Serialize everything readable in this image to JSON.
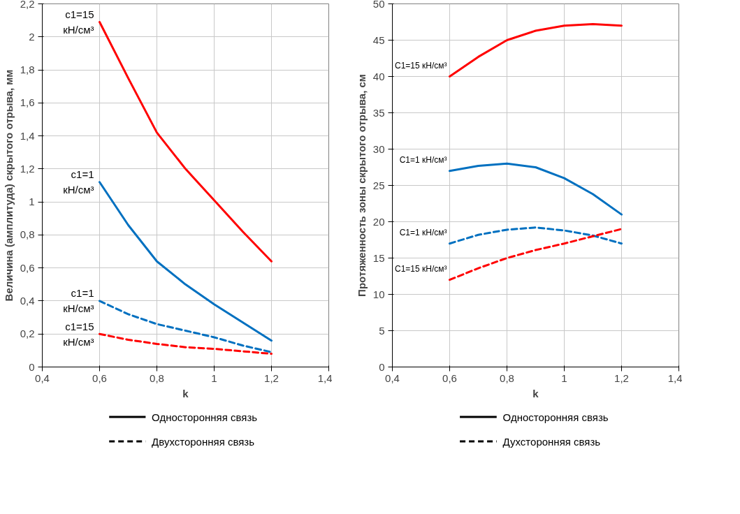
{
  "chart_data": [
    {
      "type": "line",
      "xlabel": "k",
      "ylabel": "Величина (амплитуда) скрытого отрыва, мм",
      "xlim": [
        0.4,
        1.4
      ],
      "xticks": [
        {
          "value": 0.4,
          "label": "0,4"
        },
        {
          "value": 0.6,
          "label": "0,6"
        },
        {
          "value": 0.8,
          "label": "0,8"
        },
        {
          "value": 1,
          "label": "1"
        },
        {
          "value": 1.2,
          "label": "1,2"
        },
        {
          "value": 1.4,
          "label": "1,4"
        }
      ],
      "ylim": [
        0,
        2.2
      ],
      "yticks": [
        0,
        {
          "value": 0.2,
          "label": "0,2"
        },
        {
          "value": 0.4,
          "label": "0,4"
        },
        {
          "value": 0.6,
          "label": "0,6"
        },
        {
          "value": 0.8,
          "label": "0,8"
        },
        1,
        {
          "value": 1.2,
          "label": "1,2"
        },
        {
          "value": 1.4,
          "label": "1,4"
        },
        {
          "value": 1.6,
          "label": "1,6"
        },
        {
          "value": 1.8,
          "label": "1,8"
        },
        2,
        {
          "value": 2.2,
          "label": "2,2"
        }
      ],
      "grid": true,
      "x": [
        0.6,
        0.7,
        0.8,
        0.9,
        1.0,
        1.1,
        1.2
      ],
      "series": [
        {
          "color": "#ff0000",
          "line_style": "solid",
          "values": [
            2.09,
            1.75,
            1.42,
            1.2,
            1.01,
            0.82,
            0.64
          ]
        },
        {
          "color": "#0070c0",
          "line_style": "solid",
          "values": [
            1.12,
            0.86,
            0.64,
            0.5,
            0.38,
            0.27,
            0.16
          ]
        },
        {
          "color": "#0070c0",
          "line_style": "dashed",
          "values": [
            0.4,
            0.32,
            0.26,
            0.22,
            0.18,
            0.13,
            0.09
          ]
        },
        {
          "color": "#ff0000",
          "line_style": "dashed",
          "values": [
            0.2,
            0.165,
            0.14,
            0.12,
            0.11,
            0.095,
            0.08
          ]
        }
      ],
      "annotations": [
        "c1=15\nкН/см³",
        "c1=1\nкН/см³",
        "c1=1\nкН/см³",
        "c1=15\nкН/см³",
        "Односторонняя связь",
        "Двухсторонняя связь"
      ]
    },
    {
      "type": "line",
      "xlabel": "k",
      "ylabel": "Протяженность зоны скрытого отрыва, см",
      "xlim": [
        0.4,
        1.4
      ],
      "xticks": [
        {
          "value": 0.4,
          "label": "0,4"
        },
        {
          "value": 0.6,
          "label": "0,6"
        },
        {
          "value": 0.8,
          "label": "0,8"
        },
        {
          "value": 1,
          "label": "1"
        },
        {
          "value": 1.2,
          "label": "1,2"
        },
        {
          "value": 1.4,
          "label": "1,4"
        }
      ],
      "ylim": [
        0,
        50
      ],
      "yticks": [
        0,
        5,
        10,
        15,
        20,
        25,
        30,
        35,
        40,
        45,
        50
      ],
      "grid": true,
      "x": [
        0.6,
        0.7,
        0.8,
        0.9,
        1.0,
        1.1,
        1.2
      ],
      "series": [
        {
          "color": "#ff0000",
          "line_style": "solid",
          "values": [
            40,
            42.7,
            45,
            46.3,
            47,
            47.2,
            47
          ]
        },
        {
          "color": "#0070c0",
          "line_style": "solid",
          "values": [
            27,
            27.7,
            28,
            27.5,
            26,
            23.8,
            21
          ]
        },
        {
          "color": "#0070c0",
          "line_style": "dashed",
          "values": [
            17,
            18.2,
            18.9,
            19.2,
            18.8,
            18.1,
            17
          ]
        },
        {
          "color": "#ff0000",
          "line_style": "dashed",
          "values": [
            12,
            13.6,
            15,
            16.1,
            17,
            18,
            19
          ]
        }
      ],
      "annotations": [
        "C1=15 кН/см³",
        "C1=1 кН/см³",
        "C1=1 кН/см³",
        "C1=15 кН/см³",
        "Односторонняя связь",
        "Духсторонняя связь"
      ]
    }
  ]
}
